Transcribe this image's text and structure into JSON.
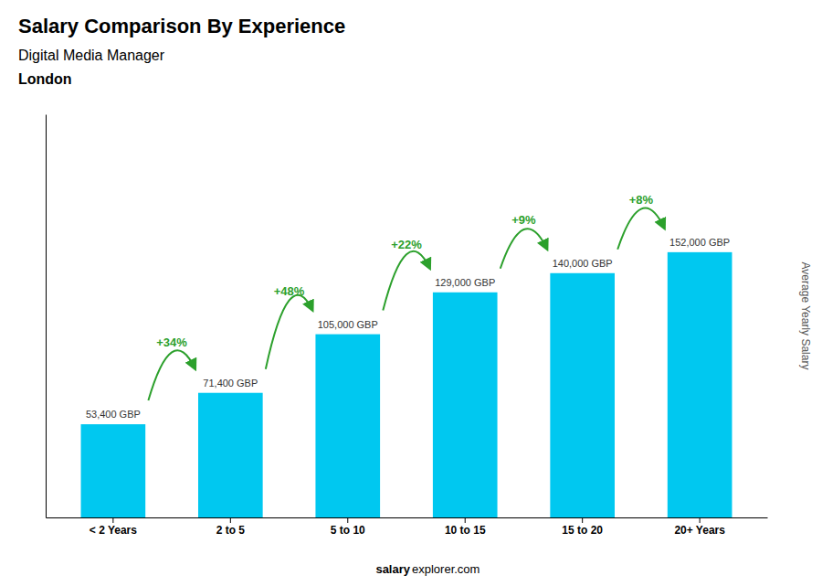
{
  "chart_data": {
    "type": "bar",
    "title": "Salary Comparison By Experience",
    "subtitle": [
      "Digital Media Manager",
      "London"
    ],
    "ylabel": "Average Yearly Salary",
    "footer": [
      "salary",
      "explorer.com"
    ],
    "categories": [
      "< 2 Years",
      "2 to 5",
      "5 to 10",
      "10 to 15",
      "15 to 20",
      "20+ Years"
    ],
    "values": [
      53400,
      71400,
      105000,
      129000,
      140000,
      152000
    ],
    "value_labels": [
      "53,400 GBP",
      "71,400 GBP",
      "105,000 GBP",
      "129,000 GBP",
      "140,000 GBP",
      "152,000 GBP"
    ],
    "data_labels": true,
    "annotations": [
      "+34%",
      "+48%",
      "+22%",
      "+9%",
      "+8%"
    ],
    "color": "#00c8f0",
    "ylim": [
      0,
      231040
    ],
    "yticks": [],
    "tick_labels": "x",
    "grid": false
  }
}
